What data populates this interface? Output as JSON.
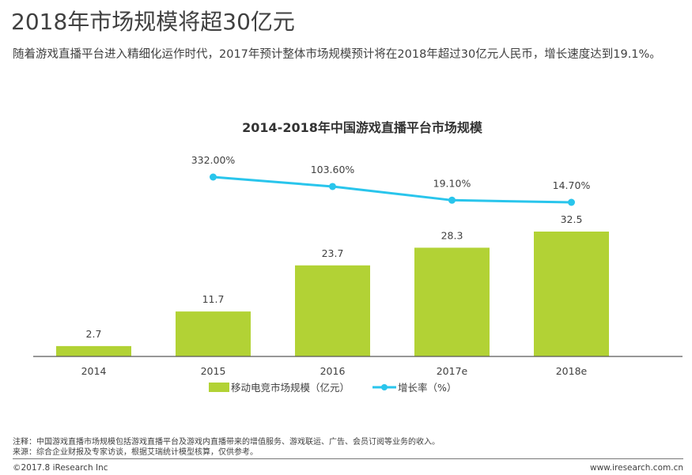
{
  "page": {
    "title": "2018年市场规模将超30亿元",
    "subtitle": "随着游戏直播平台进入精细化运作时代，2017年预计整体市场规模预计将在2018年超过30亿元人民币，增长速度达到19.1%。"
  },
  "footer": {
    "note": "注释：中国游戏直播市场规模包括游戏直播平台及游戏内直播带来的增值服务、游戏联运、广告、会员订阅等业务的收入。",
    "source": "来源：综合企业财报及专家访谈，根据艾瑞统计模型核算，仅供参考。",
    "copyright": "©2017.8 iResearch Inc",
    "website": "www.iresearch.com.cn"
  },
  "chart_data": {
    "type": "bar",
    "title": "2014-2018年中国游戏直播平台市场规模",
    "categories": [
      "2014",
      "2015",
      "2016",
      "2017e",
      "2018e"
    ],
    "series": [
      {
        "name": "移动电竞市场规模（亿元）",
        "type": "bar",
        "color": "#b2d235",
        "values": [
          2.7,
          11.7,
          23.7,
          28.3,
          32.5
        ],
        "labels": [
          "2.7",
          "11.7",
          "23.7",
          "28.3",
          "32.5"
        ]
      },
      {
        "name": "增长率（%）",
        "type": "line",
        "color": "#29c5ec",
        "values": [
          null,
          332.0,
          103.6,
          19.1,
          14.7
        ],
        "labels": [
          "",
          "332.00%",
          "103.60%",
          "19.10%",
          "14.70%"
        ]
      }
    ],
    "xlabel": "",
    "ylabel": "",
    "ylim": [
      0,
      35
    ],
    "y2lim": [
      0,
      400
    ],
    "grid": false,
    "legend": "bottom"
  }
}
